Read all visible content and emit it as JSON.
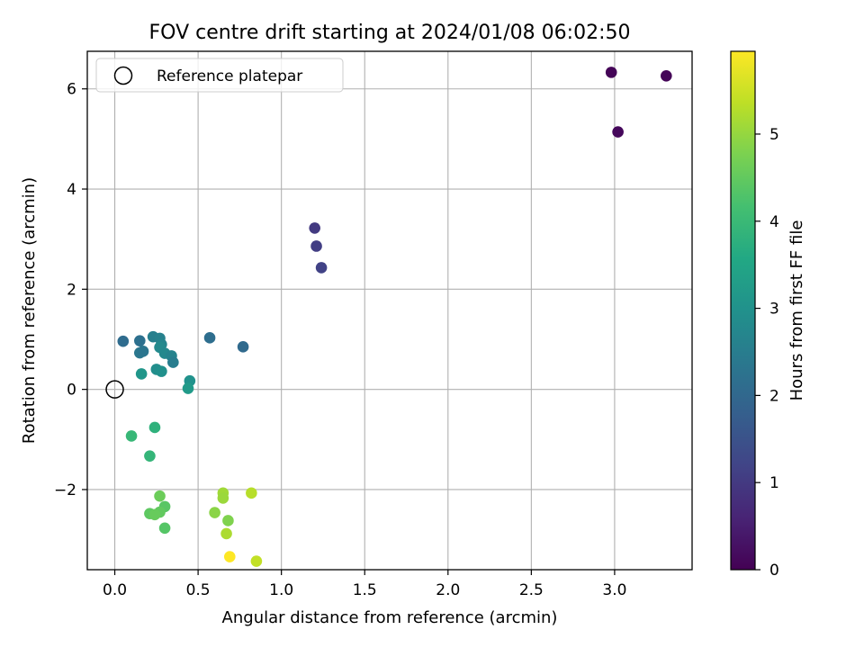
{
  "chart_data": {
    "type": "scatter",
    "title": "FOV centre drift starting at 2024/01/08 06:02:50",
    "xlabel": "Angular distance from reference (arcmin)",
    "ylabel": "Rotation from reference (arcmin)",
    "colorbar_label": "Hours from first FF file",
    "xlim": [
      -0.165,
      3.465
    ],
    "ylim": [
      -3.6,
      6.75
    ],
    "clim": [
      0,
      5.95
    ],
    "colormap": "viridis",
    "grid": true,
    "legend_position": "top-left",
    "x_ticks": [
      0.0,
      0.5,
      1.0,
      1.5,
      2.0,
      2.5,
      3.0
    ],
    "x_tick_labels": [
      "0.0",
      "0.5",
      "1.0",
      "1.5",
      "2.0",
      "2.5",
      "3.0"
    ],
    "y_ticks": [
      -2,
      0,
      2,
      4,
      6
    ],
    "y_tick_labels": [
      "−2",
      "0",
      "2",
      "4",
      "6"
    ],
    "colorbar_ticks": [
      0,
      1,
      2,
      3,
      4,
      5
    ],
    "colorbar_tick_labels": [
      "0",
      "1",
      "2",
      "3",
      "4",
      "5"
    ],
    "reference": {
      "label": "Reference platepar",
      "x": 0.0,
      "y": 0.0
    },
    "points": [
      {
        "x": 2.98,
        "y": 6.33,
        "t": 0.05
      },
      {
        "x": 3.31,
        "y": 6.26,
        "t": 0.08
      },
      {
        "x": 3.02,
        "y": 5.14,
        "t": 0.12
      },
      {
        "x": 1.2,
        "y": 3.22,
        "t": 1.0
      },
      {
        "x": 1.21,
        "y": 2.86,
        "t": 1.08
      },
      {
        "x": 1.24,
        "y": 2.43,
        "t": 1.15
      },
      {
        "x": 0.05,
        "y": 0.96,
        "t": 2.1
      },
      {
        "x": 0.15,
        "y": 0.97,
        "t": 2.2
      },
      {
        "x": 0.57,
        "y": 1.03,
        "t": 2.15
      },
      {
        "x": 0.77,
        "y": 0.85,
        "t": 2.05
      },
      {
        "x": 0.15,
        "y": 0.73,
        "t": 2.35
      },
      {
        "x": 0.17,
        "y": 0.76,
        "t": 2.3
      },
      {
        "x": 0.23,
        "y": 1.05,
        "t": 2.55
      },
      {
        "x": 0.27,
        "y": 1.02,
        "t": 2.6
      },
      {
        "x": 0.28,
        "y": 0.9,
        "t": 2.7
      },
      {
        "x": 0.27,
        "y": 0.84,
        "t": 2.8
      },
      {
        "x": 0.3,
        "y": 0.72,
        "t": 2.75
      },
      {
        "x": 0.34,
        "y": 0.67,
        "t": 2.65
      },
      {
        "x": 0.35,
        "y": 0.54,
        "t": 2.5
      },
      {
        "x": 0.25,
        "y": 0.4,
        "t": 2.9
      },
      {
        "x": 0.28,
        "y": 0.36,
        "t": 2.95
      },
      {
        "x": 0.16,
        "y": 0.31,
        "t": 3.1
      },
      {
        "x": 0.45,
        "y": 0.17,
        "t": 3.0
      },
      {
        "x": 0.44,
        "y": 0.02,
        "t": 3.2
      },
      {
        "x": 0.1,
        "y": -0.93,
        "t": 3.95
      },
      {
        "x": 0.24,
        "y": -0.76,
        "t": 3.8
      },
      {
        "x": 0.21,
        "y": -1.33,
        "t": 3.9
      },
      {
        "x": 0.27,
        "y": -2.13,
        "t": 4.6
      },
      {
        "x": 0.3,
        "y": -2.34,
        "t": 4.4
      },
      {
        "x": 0.27,
        "y": -2.45,
        "t": 4.5
      },
      {
        "x": 0.21,
        "y": -2.48,
        "t": 4.45
      },
      {
        "x": 0.24,
        "y": -2.5,
        "t": 4.55
      },
      {
        "x": 0.3,
        "y": -2.77,
        "t": 4.35
      },
      {
        "x": 0.65,
        "y": -2.07,
        "t": 5.1
      },
      {
        "x": 0.65,
        "y": -2.17,
        "t": 5.05
      },
      {
        "x": 0.6,
        "y": -2.46,
        "t": 4.9
      },
      {
        "x": 0.68,
        "y": -2.62,
        "t": 4.8
      },
      {
        "x": 0.82,
        "y": -2.07,
        "t": 5.3
      },
      {
        "x": 0.67,
        "y": -2.88,
        "t": 5.2
      },
      {
        "x": 0.85,
        "y": -3.43,
        "t": 5.4
      },
      {
        "x": 0.69,
        "y": -3.34,
        "t": 5.95
      }
    ]
  }
}
